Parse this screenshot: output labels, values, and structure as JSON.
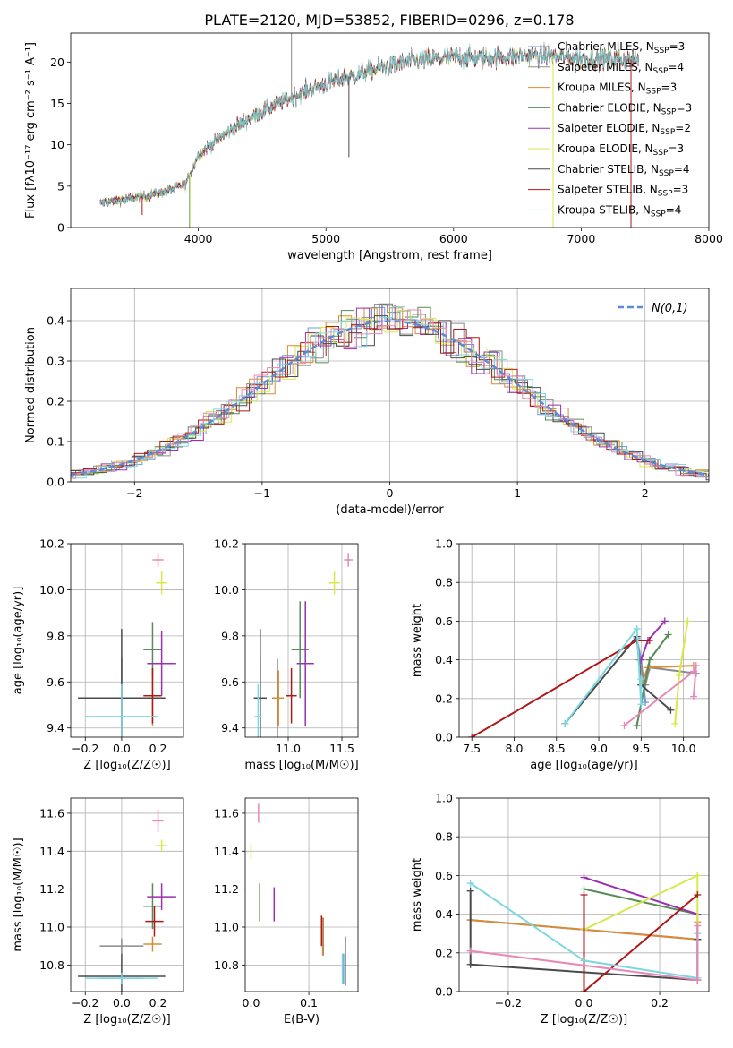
{
  "figure_title": "PLATE=2120, MJD=53852, FIBERID=0296, z=0.178",
  "colors": {
    "Chabrier MILES": "#6b9bd2",
    "Salpeter MILES": "#8a8a8a",
    "Kroupa MILES": "#d98c35",
    "Chabrier ELODIE": "#5a8a5a",
    "Salpeter ELODIE": "#9b30b0",
    "Kroupa ELODIE": "#d8e84a",
    "Chabrier STELIB": "#4a4a4a",
    "Salpeter STELIB": "#b01818",
    "Kroupa STELIB": "#7ad8e0",
    "Extra": "#e888b8",
    "gaussian": "#5b8bd6"
  },
  "chart_data": [
    {
      "id": "spectrum",
      "type": "line",
      "xlabel": "wavelength [Angstrom, rest frame]",
      "ylabel": "Flux [fλ10⁻¹⁷ erg cm⁻² s⁻¹ A⁻¹]",
      "xlim": [
        3000,
        8000
      ],
      "ylim": [
        0,
        23.5
      ],
      "xticks": [
        4000,
        5000,
        6000,
        7000,
        8000
      ],
      "yticks": [
        0,
        5,
        10,
        15,
        20
      ],
      "grid": false,
      "legend_position": "top-right",
      "legend": [
        "Chabrier MILES, N_SSP=3",
        "Salpeter MILES, N_SSP=4",
        "Kroupa MILES, N_SSP=3",
        "Chabrier ELODIE, N_SSP=3",
        "Salpeter ELODIE, N_SSP=2",
        "Kroupa ELODIE, N_SSP=3",
        "Chabrier STELIB, N_SSP=4",
        "Salpeter STELIB, N_SSP=3",
        "Kroupa STELIB, N_SSP=4"
      ],
      "series_keys": [
        "Chabrier MILES",
        "Salpeter MILES",
        "Kroupa MILES",
        "Chabrier ELODIE",
        "Salpeter ELODIE",
        "Kroupa ELODIE",
        "Chabrier STELIB",
        "Salpeter STELIB",
        "Kroupa STELIB"
      ],
      "wavelength_range": [
        3230,
        7450
      ],
      "continuum": {
        "x": [
          3230,
          3500,
          3700,
          3900,
          4000,
          4200,
          4400,
          4600,
          4800,
          5000,
          5200,
          5400,
          5600,
          5800,
          6000,
          6200,
          6400,
          6600,
          6800,
          7000,
          7200,
          7450
        ],
        "y": [
          3.0,
          3.6,
          4.2,
          5.2,
          8.8,
          11.2,
          13.2,
          14.8,
          16.2,
          17.4,
          18.3,
          19.2,
          19.9,
          20.3,
          20.6,
          20.5,
          20.6,
          20.8,
          20.7,
          20.5,
          20.4,
          20.3
        ]
      },
      "spikes": [
        {
          "x": 3560,
          "y": 1.5,
          "series": "Salpeter STELIB"
        },
        {
          "x": 3930,
          "y": 0,
          "series": "Chabrier MILES"
        },
        {
          "x": 3935,
          "y": 0,
          "series": "Kroupa ELODIE"
        },
        {
          "x": 4730,
          "y": 23.5,
          "series": "Salpeter MILES"
        },
        {
          "x": 5180,
          "y": 8.5,
          "series": "Chabrier STELIB"
        },
        {
          "x": 6780,
          "y": 0,
          "series": "Kroupa ELODIE"
        },
        {
          "x": 7390,
          "y": 0,
          "series": "Salpeter STELIB"
        }
      ]
    },
    {
      "id": "residuals",
      "type": "histogram",
      "xlabel": "(data-model)/error",
      "ylabel": "Normed distribution",
      "xlim": [
        -2.5,
        2.5
      ],
      "ylim": [
        0,
        0.48
      ],
      "xticks": [
        -2,
        -1,
        0,
        1,
        2
      ],
      "yticks": [
        0.0,
        0.1,
        0.2,
        0.3,
        0.4
      ],
      "grid": true,
      "bin_width": 0.1,
      "curve_label": "N(0,1)",
      "legend_position": "top-right"
    },
    {
      "id": "age_vs_Z",
      "type": "errorbar",
      "xlabel": "Z [log₁₀(Z/Z☉)]",
      "ylabel": "age  [log₁₀(age/yr)]",
      "xlim": [
        -0.28,
        0.34
      ],
      "ylim": [
        9.36,
        10.2
      ],
      "xticks": [
        -0.2,
        0.0,
        0.2
      ],
      "yticks": [
        9.4,
        9.6,
        9.8,
        10.0,
        10.2
      ],
      "grid": true,
      "points": [
        {
          "s": "Chabrier MILES",
          "x": 0.0,
          "y": 9.53,
          "xerr": 0.12,
          "yerr": 0.18
        },
        {
          "s": "Salpeter MILES",
          "x": 0.0,
          "y": 9.53,
          "xerr": 0.1,
          "yerr": 0.17
        },
        {
          "s": "Kroupa MILES",
          "x": 0.17,
          "y": 9.53,
          "xerr": 0.05,
          "yerr": 0.12
        },
        {
          "s": "Chabrier ELODIE",
          "x": 0.17,
          "y": 9.74,
          "xerr": 0.05,
          "yerr": 0.12
        },
        {
          "s": "Salpeter ELODIE",
          "x": 0.22,
          "y": 9.68,
          "xerr": 0.08,
          "yerr": 0.14
        },
        {
          "s": "Kroupa ELODIE",
          "x": 0.22,
          "y": 10.03,
          "xerr": 0.03,
          "yerr": 0.05
        },
        {
          "s": "Chabrier STELIB",
          "x": 0.0,
          "y": 9.53,
          "xerr": 0.24,
          "yerr": 0.3
        },
        {
          "s": "Salpeter STELIB",
          "x": 0.17,
          "y": 9.54,
          "xerr": 0.05,
          "yerr": 0.12
        },
        {
          "s": "Kroupa STELIB",
          "x": 0.0,
          "y": 9.45,
          "xerr": 0.2,
          "yerr": 0.14
        },
        {
          "s": "Extra",
          "x": 0.2,
          "y": 10.13,
          "xerr": 0.03,
          "yerr": 0.03
        }
      ]
    },
    {
      "id": "age_vs_mass",
      "type": "errorbar",
      "xlabel": "mass [log₁₀(M/M☉)]",
      "xlim": [
        10.6,
        11.65
      ],
      "ylim": [
        9.36,
        10.2
      ],
      "xticks": [
        11.0,
        11.5
      ],
      "yticks": [
        9.4,
        9.6,
        9.8,
        10.0,
        10.2
      ],
      "grid": true,
      "points": [
        {
          "s": "Chabrier MILES",
          "x": 10.74,
          "y": 9.53,
          "xerr": 0.05,
          "yerr": 0.18
        },
        {
          "s": "Salpeter MILES",
          "x": 10.9,
          "y": 9.53,
          "xerr": 0.05,
          "yerr": 0.17
        },
        {
          "s": "Kroupa MILES",
          "x": 10.91,
          "y": 9.53,
          "xerr": 0.05,
          "yerr": 0.12
        },
        {
          "s": "Chabrier ELODIE",
          "x": 11.11,
          "y": 9.74,
          "xerr": 0.08,
          "yerr": 0.21
        },
        {
          "s": "Salpeter ELODIE",
          "x": 11.16,
          "y": 9.68,
          "xerr": 0.08,
          "yerr": 0.27
        },
        {
          "s": "Kroupa ELODIE",
          "x": 11.43,
          "y": 10.03,
          "xerr": 0.05,
          "yerr": 0.05
        },
        {
          "s": "Chabrier STELIB",
          "x": 10.74,
          "y": 9.53,
          "xerr": 0.06,
          "yerr": 0.3
        },
        {
          "s": "Salpeter STELIB",
          "x": 11.03,
          "y": 9.54,
          "xerr": 0.05,
          "yerr": 0.12
        },
        {
          "s": "Kroupa STELIB",
          "x": 10.72,
          "y": 9.45,
          "xerr": 0.03,
          "yerr": 0.14
        },
        {
          "s": "Extra",
          "x": 11.56,
          "y": 10.13,
          "xerr": 0.04,
          "yerr": 0.03
        }
      ]
    },
    {
      "id": "weight_vs_age",
      "type": "line",
      "xlabel": "age  [log₁₀(age/yr)]",
      "ylabel": "mass weight",
      "xlim": [
        7.35,
        10.3
      ],
      "ylim": [
        0.0,
        1.0
      ],
      "xticks": [
        7.5,
        8.0,
        8.5,
        9.0,
        9.5,
        10.0
      ],
      "yticks": [
        0.0,
        0.2,
        0.4,
        0.6,
        0.8,
        1.0
      ],
      "grid": true,
      "series": [
        {
          "s": "Chabrier MILES",
          "x": [
            9.45,
            9.5,
            9.55
          ],
          "y": [
            0.51,
            0.4,
            0.18
          ]
        },
        {
          "s": "Salpeter MILES",
          "x": [
            9.48,
            9.55,
            9.6,
            10.15
          ],
          "y": [
            0.4,
            0.27,
            0.36,
            0.33
          ]
        },
        {
          "s": "Kroupa MILES",
          "x": [
            9.5,
            9.58,
            10.12
          ],
          "y": [
            0.27,
            0.36,
            0.37
          ]
        },
        {
          "s": "Chabrier ELODIE",
          "x": [
            9.45,
            9.6,
            9.82
          ],
          "y": [
            0.06,
            0.4,
            0.53
          ]
        },
        {
          "s": "Salpeter ELODIE",
          "x": [
            9.5,
            9.58,
            9.78
          ],
          "y": [
            0.4,
            0.5,
            0.6
          ]
        },
        {
          "s": "Kroupa ELODIE",
          "x": [
            9.9,
            9.95,
            10.05
          ],
          "y": [
            0.07,
            0.32,
            0.6
          ]
        },
        {
          "s": "Chabrier STELIB",
          "x": [
            8.6,
            9.45,
            9.5,
            9.85
          ],
          "y": [
            0.07,
            0.52,
            0.27,
            0.14
          ]
        },
        {
          "s": "Salpeter STELIB",
          "x": [
            7.5,
            9.45,
            9.6
          ],
          "y": [
            0.0,
            0.5,
            0.5
          ]
        },
        {
          "s": "Kroupa STELIB",
          "x": [
            8.6,
            9.45,
            9.5,
            9.5
          ],
          "y": [
            0.07,
            0.56,
            0.17,
            0.3
          ]
        },
        {
          "s": "Extra",
          "x": [
            9.3,
            10.12,
            10.15,
            10.12
          ],
          "y": [
            0.06,
            0.34,
            0.37,
            0.21
          ]
        }
      ]
    },
    {
      "id": "mass_vs_Z",
      "type": "errorbar",
      "xlabel": "Z [log₁₀(Z/Z☉)]",
      "ylabel": "mass [log₁₀(M/M☉)]",
      "xlim": [
        -0.28,
        0.34
      ],
      "ylim": [
        10.66,
        11.68
      ],
      "xticks": [
        -0.2,
        0.0,
        0.2
      ],
      "yticks": [
        10.8,
        11.0,
        11.2,
        11.4,
        11.6
      ],
      "grid": true,
      "points": [
        {
          "s": "Chabrier MILES",
          "x": 0.0,
          "y": 10.73,
          "xerr": 0.12,
          "yerr": 0.03
        },
        {
          "s": "Salpeter MILES",
          "x": 0.0,
          "y": 10.9,
          "xerr": 0.12,
          "yerr": 0.04
        },
        {
          "s": "Kroupa MILES",
          "x": 0.17,
          "y": 10.91,
          "xerr": 0.05,
          "yerr": 0.04
        },
        {
          "s": "Chabrier ELODIE",
          "x": 0.17,
          "y": 11.11,
          "xerr": 0.05,
          "yerr": 0.12
        },
        {
          "s": "Salpeter ELODIE",
          "x": 0.22,
          "y": 11.16,
          "xerr": 0.08,
          "yerr": 0.07
        },
        {
          "s": "Kroupa ELODIE",
          "x": 0.22,
          "y": 11.43,
          "xerr": 0.03,
          "yerr": 0.03
        },
        {
          "s": "Chabrier STELIB",
          "x": 0.0,
          "y": 10.74,
          "xerr": 0.24,
          "yerr": 0.12
        },
        {
          "s": "Salpeter STELIB",
          "x": 0.18,
          "y": 11.03,
          "xerr": 0.05,
          "yerr": 0.08
        },
        {
          "s": "Kroupa STELIB",
          "x": 0.0,
          "y": 10.73,
          "xerr": 0.2,
          "yerr": 0.03
        },
        {
          "s": "Extra",
          "x": 0.2,
          "y": 11.56,
          "xerr": 0.03,
          "yerr": 0.06
        }
      ]
    },
    {
      "id": "mass_vs_ebv",
      "type": "errorbar",
      "xlabel": "E(B-V)",
      "xlim": [
        -0.01,
        0.185
      ],
      "ylim": [
        10.66,
        11.68
      ],
      "xticks": [
        0.0,
        0.1
      ],
      "yticks": [
        10.8,
        11.0,
        11.2,
        11.4,
        11.6
      ],
      "grid": true,
      "points": [
        {
          "s": "Chabrier MILES",
          "x": 0.16,
          "y": 10.78,
          "xerr": 0,
          "yerr": 0.08
        },
        {
          "s": "Salpeter MILES",
          "x": 0.125,
          "y": 10.95,
          "xerr": 0,
          "yerr": 0.1
        },
        {
          "s": "Kroupa MILES",
          "x": 0.124,
          "y": 10.95,
          "xerr": 0,
          "yerr": 0.1
        },
        {
          "s": "Chabrier ELODIE",
          "x": 0.015,
          "y": 11.13,
          "xerr": 0,
          "yerr": 0.1
        },
        {
          "s": "Salpeter ELODIE",
          "x": 0.04,
          "y": 11.12,
          "xerr": 0,
          "yerr": 0.09
        },
        {
          "s": "Kroupa ELODIE",
          "x": 0.0,
          "y": 11.4,
          "xerr": 0,
          "yerr": 0.04
        },
        {
          "s": "Chabrier STELIB",
          "x": 0.163,
          "y": 10.82,
          "xerr": 0,
          "yerr": 0.13
        },
        {
          "s": "Salpeter STELIB",
          "x": 0.122,
          "y": 10.98,
          "xerr": 0,
          "yerr": 0.08
        },
        {
          "s": "Kroupa STELIB",
          "x": 0.158,
          "y": 10.78,
          "xerr": 0,
          "yerr": 0.08
        },
        {
          "s": "Extra",
          "x": 0.013,
          "y": 11.6,
          "xerr": 0,
          "yerr": 0.05
        }
      ]
    },
    {
      "id": "weight_vs_Z",
      "type": "line",
      "xlabel": "Z [log₁₀(Z/Z☉)]",
      "ylabel": "mass weight",
      "xlim": [
        -0.33,
        0.33
      ],
      "ylim": [
        0.0,
        1.0
      ],
      "xticks": [
        -0.2,
        0.0,
        0.2
      ],
      "yticks": [
        0.0,
        0.2,
        0.4,
        0.6,
        0.8,
        1.0
      ],
      "grid": true,
      "series": [
        {
          "s": "Chabrier MILES",
          "x": [
            -0.3,
            0.3
          ],
          "y": [
            0.37,
            0.27
          ]
        },
        {
          "s": "Salpeter MILES",
          "x": [
            0.3,
            0.3
          ],
          "y": [
            0.27,
            0.4
          ]
        },
        {
          "s": "Kroupa MILES",
          "x": [
            -0.3,
            0.3,
            0.3
          ],
          "y": [
            0.37,
            0.27,
            0.36
          ]
        },
        {
          "s": "Chabrier ELODIE",
          "x": [
            0.0,
            0.3
          ],
          "y": [
            0.53,
            0.4
          ]
        },
        {
          "s": "Salpeter ELODIE",
          "x": [
            0.0,
            0.3
          ],
          "y": [
            0.59,
            0.4
          ]
        },
        {
          "s": "Kroupa ELODIE",
          "x": [
            0.0,
            0.3,
            0.3
          ],
          "y": [
            0.32,
            0.6,
            0.07
          ]
        },
        {
          "s": "Chabrier STELIB",
          "x": [
            -0.3,
            -0.3,
            0.3,
            0.3
          ],
          "y": [
            0.52,
            0.14,
            0.06,
            0.27
          ]
        },
        {
          "s": "Salpeter STELIB",
          "x": [
            0.0,
            0.0,
            0.3
          ],
          "y": [
            0.5,
            0.0,
            0.5
          ]
        },
        {
          "s": "Kroupa STELIB",
          "x": [
            -0.3,
            0.0,
            0.3,
            0.3
          ],
          "y": [
            0.56,
            0.16,
            0.07,
            0.3
          ]
        },
        {
          "s": "Extra",
          "x": [
            -0.3,
            0.3,
            0.3
          ],
          "y": [
            0.21,
            0.06,
            0.34
          ]
        }
      ]
    }
  ]
}
